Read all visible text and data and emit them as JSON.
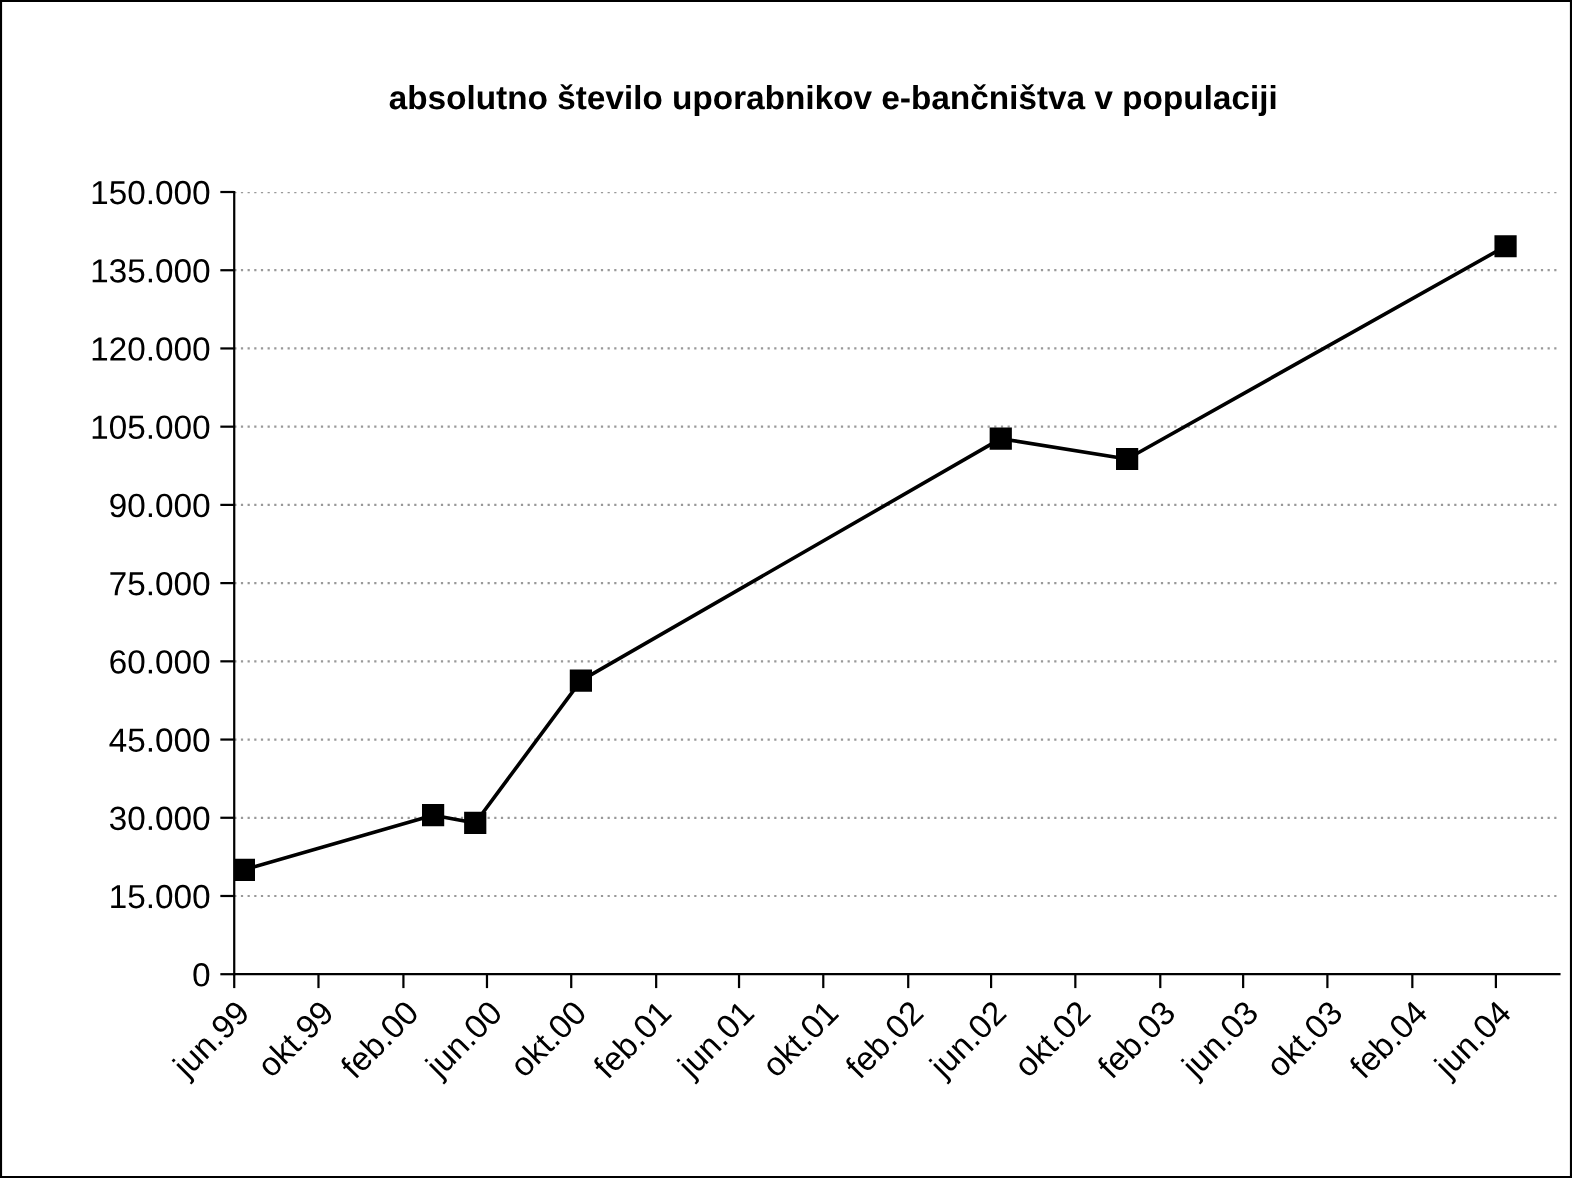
{
  "chart_data": {
    "type": "line",
    "title": "absolutno število uporabnikov e-bančništva v populaciji",
    "x": [
      "1999-06-15",
      "2000-03-15",
      "2000-05-15",
      "2000-10-15",
      "2002-06-15",
      "2002-12-15",
      "2004-06-15"
    ],
    "series": [
      {
        "color": "#000000",
        "values": [
          20000,
          30500,
          29000,
          56300,
          102700,
          98800,
          139600
        ]
      }
    ],
    "xlim": [
      "1999-06-01",
      "2004-09-01"
    ],
    "xticks": [
      {
        "value": "1999-06-01",
        "label": "jun.99"
      },
      {
        "value": "1999-10-01",
        "label": "okt.99"
      },
      {
        "value": "2000-02-01",
        "label": "feb.00"
      },
      {
        "value": "2000-06-01",
        "label": "jun.00"
      },
      {
        "value": "2000-10-01",
        "label": "okt.00"
      },
      {
        "value": "2001-02-01",
        "label": "feb.01"
      },
      {
        "value": "2001-06-01",
        "label": "jun.01"
      },
      {
        "value": "2001-10-01",
        "label": "okt.01"
      },
      {
        "value": "2002-02-01",
        "label": "feb.02"
      },
      {
        "value": "2002-06-01",
        "label": "jun.02"
      },
      {
        "value": "2002-10-01",
        "label": "okt.02"
      },
      {
        "value": "2003-02-01",
        "label": "feb.03"
      },
      {
        "value": "2003-06-01",
        "label": "jun.03"
      },
      {
        "value": "2003-10-01",
        "label": "okt.03"
      },
      {
        "value": "2004-02-01",
        "label": "feb.04"
      },
      {
        "value": "2004-06-01",
        "label": "jun.04"
      }
    ],
    "ylim": [
      0,
      150000
    ],
    "yticks": [
      0,
      {
        "value": 15000,
        "label": "15.000"
      },
      {
        "value": 30000,
        "label": "30.000"
      },
      {
        "value": 45000,
        "label": "45.000"
      },
      {
        "value": 60000,
        "label": "60.000"
      },
      {
        "value": 75000,
        "label": "75.000"
      },
      {
        "value": 90000,
        "label": "90.000"
      },
      {
        "value": 105000,
        "label": "105.000"
      },
      {
        "value": 120000,
        "label": "120.000"
      },
      {
        "value": 135000,
        "label": "135.000"
      },
      {
        "value": 150000,
        "label": "150.000"
      }
    ],
    "grid": "y",
    "legend": false,
    "marker": "square",
    "line_style": "solid"
  }
}
